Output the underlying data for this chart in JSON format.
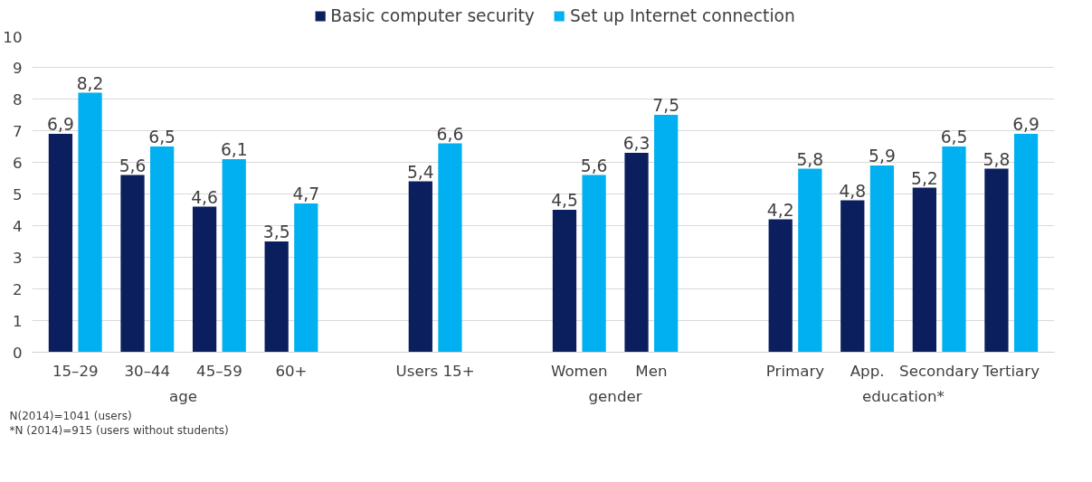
{
  "chart_data": {
    "type": "bar",
    "categories": [
      "15–29",
      "30–44",
      "45–59",
      "60+",
      null,
      "Users 15+",
      null,
      "Women",
      "Men",
      null,
      "Primary",
      "App.",
      "Secondary",
      "Tertiary"
    ],
    "series": [
      {
        "name": "Basic computer security",
        "color": "#0b1f5e",
        "values": [
          6.9,
          5.6,
          4.6,
          3.5,
          null,
          5.4,
          null,
          4.5,
          6.3,
          null,
          4.2,
          4.8,
          5.2,
          5.8
        ],
        "value_labels": [
          "6,9",
          "5,6",
          "4,6",
          "3,5",
          null,
          "5,4",
          null,
          "4,5",
          "6,3",
          null,
          "4,2",
          "4,8",
          "5,2",
          "5,8"
        ]
      },
      {
        "name": "Set up Internet connection",
        "color": "#00b0f0",
        "values": [
          8.2,
          6.5,
          6.1,
          4.7,
          null,
          6.6,
          null,
          5.6,
          7.5,
          null,
          5.8,
          5.9,
          6.5,
          6.9
        ],
        "value_labels": [
          "8,2",
          "6,5",
          "6,1",
          "4,7",
          null,
          "6,6",
          null,
          "5,6",
          "7,5",
          null,
          "5,8",
          "5,9",
          "6,5",
          "6,9"
        ]
      }
    ],
    "ylim": [
      0,
      10
    ],
    "yticks": [
      0,
      1,
      2,
      3,
      4,
      5,
      6,
      7,
      8,
      9,
      10
    ],
    "grid": "y",
    "legend": "top",
    "annotations": [
      "age",
      "gender",
      "education*",
      "N(2014)=1041 (users)",
      "*N (2014)=915 (users without students)"
    ]
  }
}
